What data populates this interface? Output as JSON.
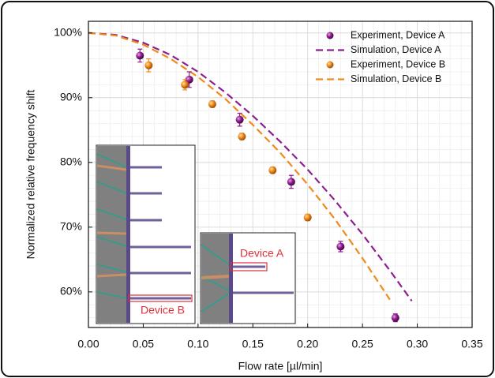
{
  "chart_data": {
    "type": "scatter",
    "xlabel": "Flow rate [µl/min]",
    "ylabel": "Normalized relative frequency shift",
    "xlim": [
      0,
      0.35
    ],
    "ylim": [
      54.5,
      101.8
    ],
    "xticks": [
      {
        "value": 0,
        "label": "0.00"
      },
      {
        "value": 0.05,
        "label": "0.05"
      },
      {
        "value": 0.1,
        "label": "0.10"
      },
      {
        "value": 0.15,
        "label": "0.15"
      },
      {
        "value": 0.2,
        "label": "0.20"
      },
      {
        "value": 0.25,
        "label": "0.25"
      },
      {
        "value": 0.3,
        "label": "0.30"
      },
      {
        "value": 0.35,
        "label": "0.35"
      }
    ],
    "yticks": [
      {
        "value": 60,
        "label": "60%"
      },
      {
        "value": 70,
        "label": "70%"
      },
      {
        "value": 80,
        "label": "80%"
      },
      {
        "value": 90,
        "label": "90%"
      },
      {
        "value": 100,
        "label": "100%"
      }
    ],
    "grid": true,
    "legend": "upper right",
    "annotations": [
      "Device A",
      "Device B"
    ],
    "series": [
      {
        "name": "Experiment, Device A",
        "style": "markers",
        "color": "#8e1f8e",
        "x": [
          0.047,
          0.092,
          0.138,
          0.185,
          0.23,
          0.28
        ],
        "values": [
          96.5,
          92.8,
          86.6,
          77.0,
          67.0,
          56.0
        ],
        "errors": [
          1.0,
          1.2,
          1.0,
          1.0,
          0.8,
          0.6
        ]
      },
      {
        "name": "Simulation, Device A",
        "style": "dashed",
        "color": "#8e1f8e",
        "x": [
          0,
          0.025,
          0.05,
          0.075,
          0.1,
          0.125,
          0.15,
          0.175,
          0.2,
          0.225,
          0.25,
          0.275,
          0.295
        ],
        "values": [
          100,
          99.7,
          98.5,
          96.6,
          94.0,
          90.8,
          87.2,
          83.2,
          78.9,
          74.1,
          68.9,
          63.3,
          58.6
        ]
      },
      {
        "name": "Experiment, Device B",
        "style": "markers",
        "color": "#f08a1a",
        "x": [
          0.055,
          0.088,
          0.113,
          0.14,
          0.168,
          0.2
        ],
        "values": [
          95.0,
          92.0,
          89.0,
          84.0,
          78.8,
          71.5
        ],
        "errors": [
          1.0,
          0.8,
          0.5,
          0.5,
          0.5,
          0.5
        ]
      },
      {
        "name": "Simulation, Device B",
        "style": "dashed",
        "color": "#f08a1a",
        "x": [
          0,
          0.025,
          0.05,
          0.075,
          0.1,
          0.125,
          0.15,
          0.175,
          0.2,
          0.225,
          0.25,
          0.275
        ],
        "values": [
          100,
          99.6,
          98.2,
          96.0,
          93.2,
          89.8,
          85.8,
          81.5,
          76.6,
          71.2,
          65.2,
          58.8
        ]
      }
    ]
  }
}
